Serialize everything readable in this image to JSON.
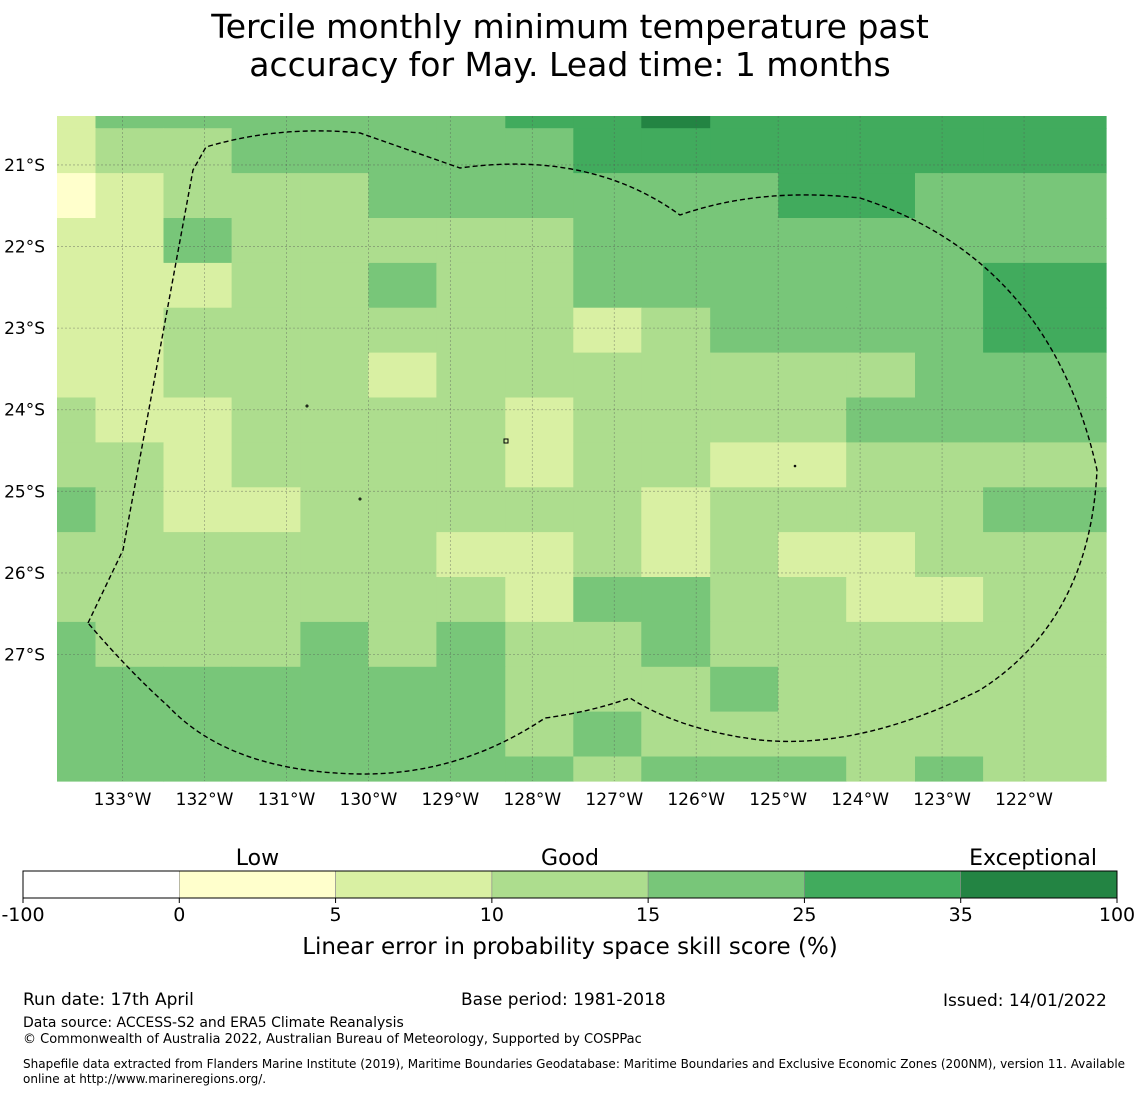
{
  "title": {
    "line1": "Tercile monthly minimum temperature past",
    "line2": "accuracy for May. Lead time: 1 months"
  },
  "map": {
    "lon_range": [
      -133.8,
      -121.0
    ],
    "lat_range": [
      -20.4,
      -28.55
    ],
    "lon_ticks": [
      "133°W",
      "132°W",
      "131°W",
      "130°W",
      "129°W",
      "128°W",
      "127°W",
      "126°W",
      "125°W",
      "124°W",
      "123°W",
      "122°W"
    ],
    "lat_ticks": [
      "21°S",
      "22°S",
      "23°S",
      "24°S",
      "25°S",
      "26°S",
      "27°S"
    ],
    "gridlines": true,
    "boundary": "EEZ dashed outline",
    "columns": [
      {
        "from": -133.8,
        "to": -133.33
      },
      {
        "from": -133.33,
        "to": -132.5
      },
      {
        "from": -132.5,
        "to": -131.67
      },
      {
        "from": -131.67,
        "to": -130.83
      },
      {
        "from": -130.83,
        "to": -130.0
      },
      {
        "from": -130.0,
        "to": -129.17
      },
      {
        "from": -129.17,
        "to": -128.33
      },
      {
        "from": -128.33,
        "to": -127.5
      },
      {
        "from": -127.5,
        "to": -126.67
      },
      {
        "from": -126.67,
        "to": -125.83
      },
      {
        "from": -125.83,
        "to": -125.0
      },
      {
        "from": -125.0,
        "to": -124.17
      },
      {
        "from": -124.17,
        "to": -123.33
      },
      {
        "from": -123.33,
        "to": -122.5
      },
      {
        "from": -122.5,
        "to": -121.0
      }
    ],
    "rows": [
      {
        "from": -20.4,
        "to": -20.55
      },
      {
        "from": -20.55,
        "to": -21.1
      },
      {
        "from": -21.1,
        "to": -21.65
      },
      {
        "from": -21.65,
        "to": -22.2
      },
      {
        "from": -22.2,
        "to": -22.75
      },
      {
        "from": -22.75,
        "to": -23.3
      },
      {
        "from": -23.3,
        "to": -23.85
      },
      {
        "from": -23.85,
        "to": -24.4
      },
      {
        "from": -24.4,
        "to": -24.95
      },
      {
        "from": -24.95,
        "to": -25.5
      },
      {
        "from": -25.5,
        "to": -26.05
      },
      {
        "from": -26.05,
        "to": -26.6
      },
      {
        "from": -26.6,
        "to": -27.15
      },
      {
        "from": -27.15,
        "to": -27.7
      },
      {
        "from": -27.7,
        "to": -28.25
      },
      {
        "from": -28.25,
        "to": -28.55
      }
    ],
    "grid_classes": [
      [
        2,
        4,
        4,
        4,
        4,
        4,
        4,
        5,
        5,
        6,
        5,
        5,
        5,
        5,
        5
      ],
      [
        2,
        3,
        3,
        4,
        4,
        4,
        4,
        4,
        5,
        5,
        5,
        5,
        5,
        5,
        5
      ],
      [
        1,
        2,
        3,
        3,
        3,
        4,
        4,
        4,
        4,
        4,
        4,
        5,
        5,
        4,
        4
      ],
      [
        2,
        2,
        4,
        3,
        3,
        3,
        3,
        3,
        4,
        4,
        4,
        4,
        4,
        4,
        4
      ],
      [
        2,
        2,
        2,
        3,
        3,
        4,
        3,
        3,
        4,
        4,
        4,
        4,
        4,
        4,
        5
      ],
      [
        2,
        2,
        3,
        3,
        3,
        3,
        3,
        3,
        2,
        3,
        4,
        4,
        4,
        4,
        5
      ],
      [
        2,
        2,
        3,
        3,
        3,
        2,
        3,
        3,
        3,
        3,
        3,
        3,
        3,
        4,
        4
      ],
      [
        3,
        2,
        2,
        3,
        3,
        3,
        3,
        2,
        3,
        3,
        3,
        3,
        4,
        4,
        4
      ],
      [
        3,
        3,
        2,
        3,
        3,
        3,
        3,
        2,
        3,
        3,
        2,
        2,
        3,
        3,
        3
      ],
      [
        4,
        3,
        2,
        2,
        3,
        3,
        3,
        3,
        3,
        2,
        3,
        3,
        3,
        3,
        4
      ],
      [
        3,
        3,
        3,
        3,
        3,
        3,
        2,
        2,
        3,
        2,
        3,
        2,
        2,
        3,
        3
      ],
      [
        3,
        3,
        3,
        3,
        3,
        3,
        3,
        2,
        4,
        4,
        3,
        3,
        2,
        2,
        3
      ],
      [
        4,
        3,
        3,
        3,
        4,
        3,
        4,
        3,
        3,
        4,
        3,
        3,
        3,
        3,
        3
      ],
      [
        4,
        4,
        4,
        4,
        4,
        4,
        4,
        3,
        3,
        3,
        4,
        3,
        3,
        3,
        3
      ],
      [
        4,
        4,
        4,
        4,
        4,
        4,
        4,
        3,
        4,
        3,
        3,
        3,
        3,
        3,
        3
      ],
      [
        4,
        4,
        4,
        4,
        4,
        4,
        4,
        4,
        3,
        4,
        4,
        4,
        3,
        4,
        3
      ]
    ]
  },
  "colorbar": {
    "category_labels": [
      "Low",
      "Good",
      "Exceptional"
    ],
    "tick_labels": [
      "-100",
      "0",
      "5",
      "10",
      "15",
      "25",
      "35",
      "100"
    ],
    "colors": [
      "#ffffff",
      "#ffffcc",
      "#d9f0a3",
      "#addd8e",
      "#78c679",
      "#41ab5d",
      "#238443"
    ],
    "label": "Linear error in probability space skill score (%)"
  },
  "footer": {
    "run_date": "Run date: 17th April",
    "base_period": "Base period: 1981-2018",
    "issued": "Issued: 14/01/2022",
    "data_source": "Data source: ACCESS-S2 and ERA5 Climate Reanalysis",
    "copyright": "© Commonwealth of Australia 2022, Australian Bureau of Meteorology, Supported by COSPPac",
    "shapefile": "Shapefile data extracted from Flanders Marine Institute (2019), Maritime Boundaries Geodatabase: Maritime Boundaries and Exclusive Economic Zones (200NM), version 11. Available online at http://www.marineregions.org/."
  }
}
